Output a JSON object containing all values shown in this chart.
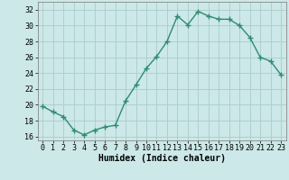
{
  "x": [
    0,
    1,
    2,
    3,
    4,
    5,
    6,
    7,
    8,
    9,
    10,
    11,
    12,
    13,
    14,
    15,
    16,
    17,
    18,
    19,
    20,
    21,
    22,
    23
  ],
  "y": [
    19.8,
    19.1,
    18.5,
    16.8,
    16.2,
    16.8,
    17.2,
    17.4,
    20.5,
    22.5,
    24.6,
    26.1,
    28.0,
    31.2,
    30.1,
    31.8,
    31.2,
    30.8,
    30.8,
    30.0,
    28.5,
    26.0,
    25.5,
    23.8
  ],
  "line_color": "#2e8b74",
  "marker": "+",
  "marker_size": 4,
  "bg_color": "#cce8e8",
  "grid_color": "#aacccc",
  "xlabel": "Humidex (Indice chaleur)",
  "ylim": [
    15.5,
    33
  ],
  "yticks": [
    16,
    18,
    20,
    22,
    24,
    26,
    28,
    30,
    32
  ],
  "xticks": [
    0,
    1,
    2,
    3,
    4,
    5,
    6,
    7,
    8,
    9,
    10,
    11,
    12,
    13,
    14,
    15,
    16,
    17,
    18,
    19,
    20,
    21,
    22,
    23
  ],
  "xlim": [
    -0.5,
    23.5
  ],
  "tick_fontsize": 6,
  "xlabel_fontsize": 7
}
